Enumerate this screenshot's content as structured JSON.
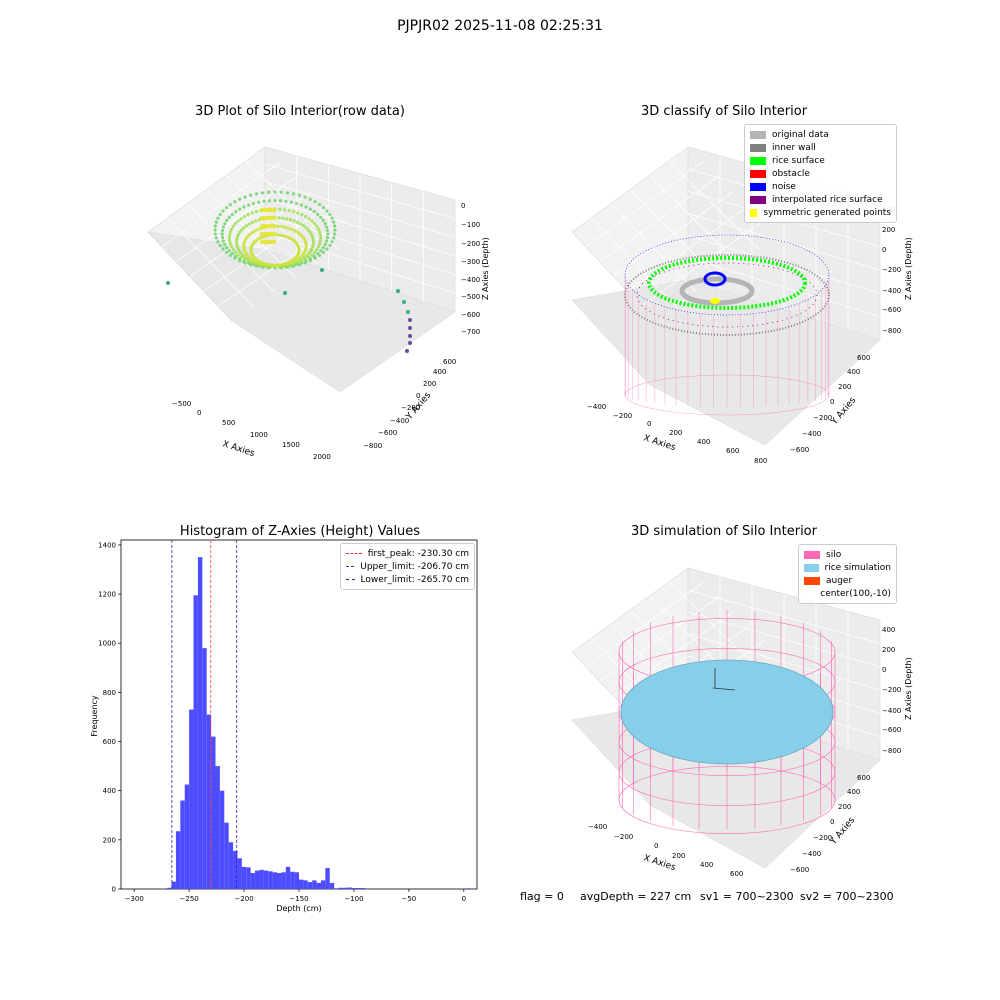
{
  "suptitle": "PJPJR02 2025-11-08 02:25:31",
  "bottom": {
    "flag": "flag = 0",
    "avg": "avgDepth = 227 cm",
    "sv1": "sv1 = 700~2300",
    "sv2": "sv2 = 700~2300"
  },
  "colors": {
    "hist_bar": "#4d4dff",
    "first_peak": "#ff3333",
    "limits": "#2222cc",
    "silo": "#ff69b4",
    "rice": "#87ceeb",
    "auger": "#ff4500",
    "original": "#b4b4b4",
    "inner_wall": "#808080",
    "rice_surface": "#00ff00",
    "obstacle": "#ff0000",
    "noise": "#0000ff",
    "interp": "#800080",
    "symmetric": "#ffff00"
  },
  "chart_data": [
    {
      "type": "scatter",
      "projection": "3d",
      "title": "3D Plot of Silo Interior(row data)",
      "xlabel": "X Axies",
      "ylabel": "Y Axies",
      "zlabel": "Z Axies (Depth)",
      "xticks": [
        "−500",
        "0",
        "500",
        "1000",
        "1500",
        "2000"
      ],
      "yticks": [
        "−800",
        "−600",
        "−400",
        "−200",
        "0",
        "200",
        "400",
        "600"
      ],
      "zticks": [
        "0",
        "−100",
        "−200",
        "−300",
        "−400",
        "−500",
        "−600",
        "−700"
      ],
      "xlim": [
        -700,
        2200
      ],
      "ylim": [
        -900,
        700
      ],
      "zlim": [
        -780,
        0
      ]
    },
    {
      "type": "scatter",
      "projection": "3d",
      "title": "3D classify of Silo Interior",
      "xlabel": "X Axies",
      "ylabel": "Y Axies",
      "zlabel": "Z Axies (Depth)",
      "xticks": [
        "−400",
        "−200",
        "0",
        "200",
        "400",
        "600",
        "800"
      ],
      "yticks": [
        "−600",
        "−400",
        "−200",
        "0",
        "200",
        "400",
        "600"
      ],
      "zticks": [
        "400",
        "200",
        "0",
        "−200",
        "−400",
        "−600",
        "−800"
      ],
      "legend": [
        {
          "label": "original data",
          "color": "#b4b4b4"
        },
        {
          "label": "inner wall",
          "color": "#808080"
        },
        {
          "label": "rice surface",
          "color": "#00ff00"
        },
        {
          "label": "obstacle",
          "color": "#ff0000"
        },
        {
          "label": "noise",
          "color": "#0000ff"
        },
        {
          "label": "interpolated rice surface",
          "color": "#800080"
        },
        {
          "label": "symmetric generated points",
          "color": "#ffff00"
        }
      ]
    },
    {
      "type": "bar",
      "title": "Histogram of Z-Axies (Height) Values",
      "xlabel": "Depth (cm)",
      "ylabel": "Frequency",
      "xlim": [
        -312,
        12
      ],
      "ylim": [
        0,
        1420
      ],
      "xticks": [
        -300,
        -250,
        -200,
        -150,
        -100,
        -50,
        0
      ],
      "xtick_labels": [
        "−300",
        "−250",
        "−200",
        "−150",
        "−100",
        "−50",
        "0"
      ],
      "yticks": [
        0,
        200,
        400,
        600,
        800,
        1000,
        1200,
        1400
      ],
      "bin_start": -270,
      "bin_width": 4,
      "values": [
        5,
        30,
        235,
        360,
        425,
        730,
        1195,
        1350,
        980,
        710,
        620,
        500,
        400,
        270,
        190,
        155,
        125,
        90,
        88,
        65,
        75,
        78,
        75,
        72,
        68,
        65,
        68,
        90,
        70,
        68,
        38,
        35,
        28,
        35,
        25,
        35,
        85,
        25,
        3,
        5,
        5,
        6,
        4,
        4,
        4,
        0,
        0,
        0,
        0,
        0,
        0,
        0,
        0,
        0,
        0,
        0,
        0,
        0,
        0,
        0,
        0,
        0,
        0,
        0,
        0,
        0,
        0,
        0,
        3
      ],
      "vlines": [
        {
          "label": "first_peak: -230.30 cm",
          "x": -230.3,
          "color": "#ff3333"
        },
        {
          "label": "Upper_limit: -206.70 cm",
          "x": -206.7,
          "color": "#2222cc"
        },
        {
          "label": "Lower_limit: -265.70 cm",
          "x": -265.7,
          "color": "#2222cc"
        }
      ]
    },
    {
      "type": "surface",
      "projection": "3d",
      "title": "3D simulation of Silo Interior",
      "xlabel": "X Axies",
      "ylabel": "Y Axies",
      "zlabel": "Z Axies (Depth)",
      "xticks": [
        "−400",
        "−200",
        "0",
        "200",
        "400",
        "600"
      ],
      "yticks": [
        "−600",
        "−400",
        "−200",
        "0",
        "200",
        "400",
        "600"
      ],
      "zticks": [
        "400",
        "200",
        "0",
        "−200",
        "−400",
        "−600",
        "−800"
      ],
      "legend": [
        {
          "label": "silo",
          "color": "#ff69b4"
        },
        {
          "label": "rice simulation",
          "color": "#87ceeb"
        },
        {
          "label": "auger",
          "color": "#ff4500"
        },
        {
          "label": "center(100,-10)",
          "color": ""
        }
      ]
    }
  ]
}
